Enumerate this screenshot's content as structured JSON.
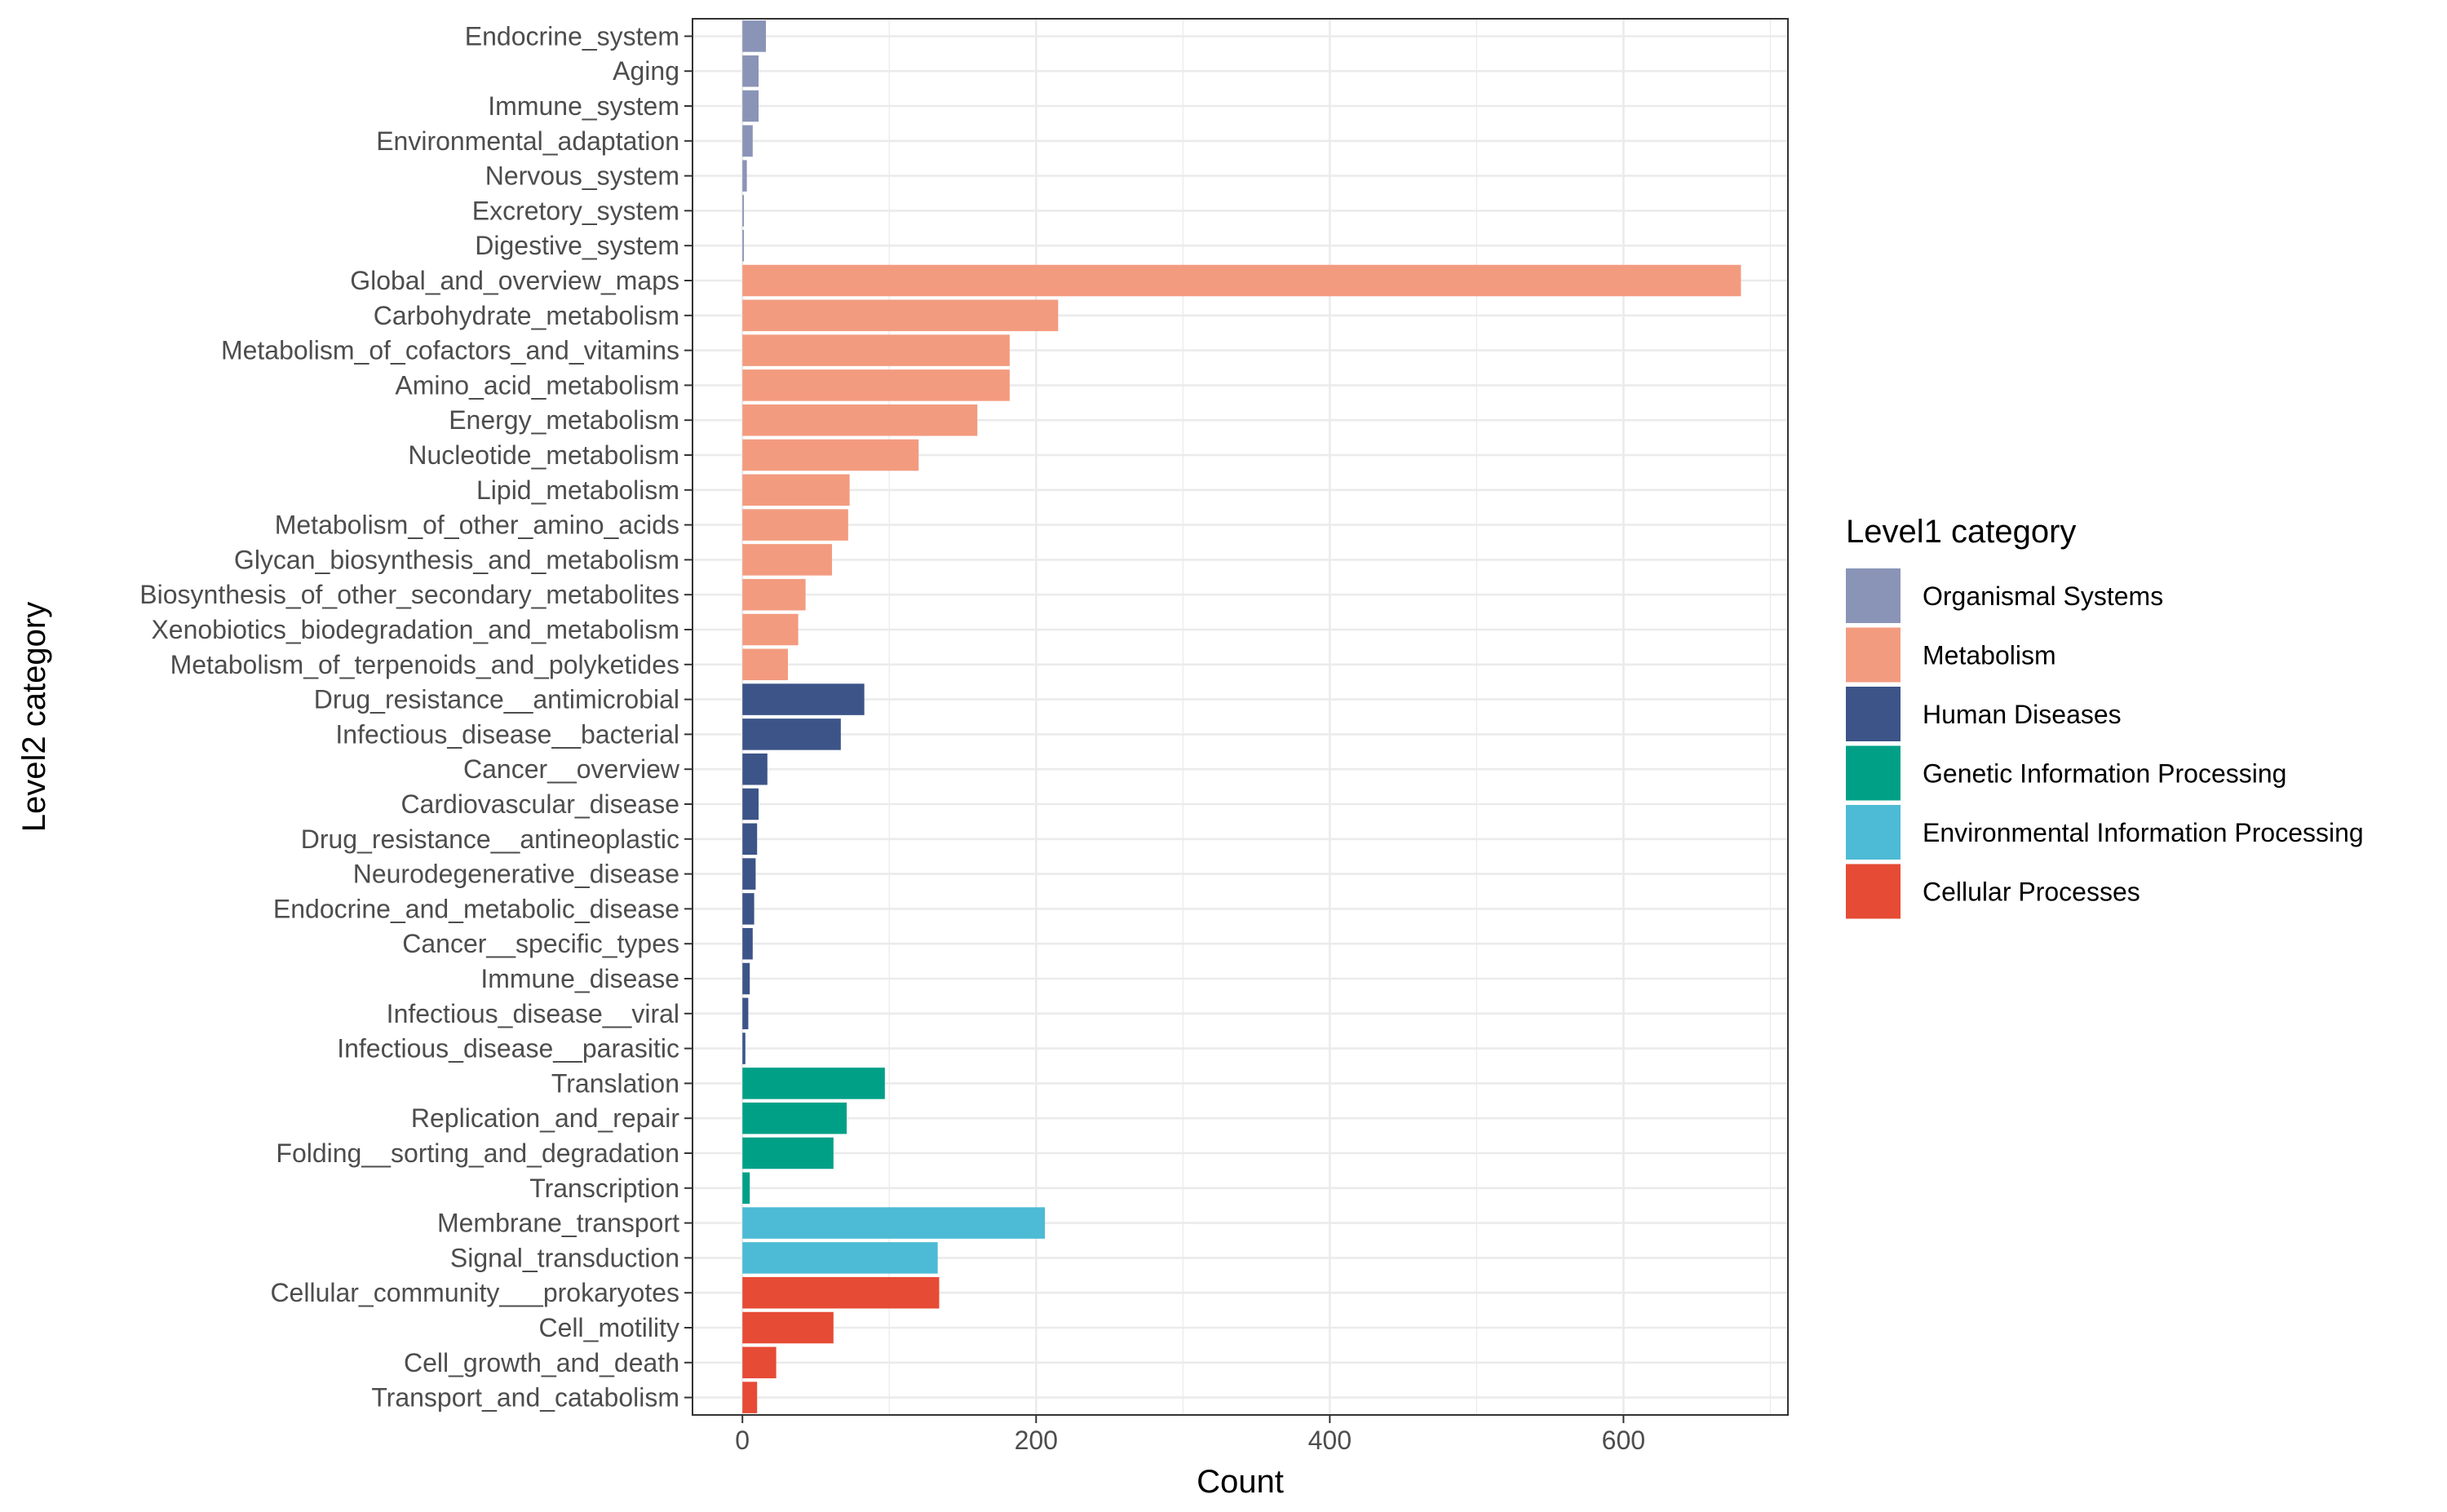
{
  "chart_data": {
    "type": "bar",
    "orientation": "horizontal",
    "xlabel": "Count",
    "ylabel": "Level2 category",
    "xlim": [
      -34,
      712
    ],
    "xticks": [
      0,
      200,
      400,
      600
    ],
    "grid": true,
    "legend_position": "right",
    "legend_title": "Level1 category",
    "groups": [
      {
        "name": "Organismal Systems",
        "color": "#8a94b7"
      },
      {
        "name": "Metabolism",
        "color": "#f39b7f"
      },
      {
        "name": "Human Diseases",
        "color": "#3c5488"
      },
      {
        "name": "Genetic Information Processing",
        "color": "#00a087"
      },
      {
        "name": "Environmental Information Processing",
        "color": "#4dbbd5"
      },
      {
        "name": "Cellular Processes",
        "color": "#e64b35"
      }
    ],
    "categories": [
      "Endocrine_system",
      "Aging",
      "Immune_system",
      "Environmental_adaptation",
      "Nervous_system",
      "Excretory_system",
      "Digestive_system",
      "Global_and_overview_maps",
      "Carbohydrate_metabolism",
      "Metabolism_of_cofactors_and_vitamins",
      "Amino_acid_metabolism",
      "Energy_metabolism",
      "Nucleotide_metabolism",
      "Lipid_metabolism",
      "Metabolism_of_other_amino_acids",
      "Glycan_biosynthesis_and_metabolism",
      "Biosynthesis_of_other_secondary_metabolites",
      "Xenobiotics_biodegradation_and_metabolism",
      "Metabolism_of_terpenoids_and_polyketides",
      "Drug_resistance__antimicrobial",
      "Infectious_disease__bacterial",
      "Cancer__overview",
      "Cardiovascular_disease",
      "Drug_resistance__antineoplastic",
      "Neurodegenerative_disease",
      "Endocrine_and_metabolic_disease",
      "Cancer__specific_types",
      "Immune_disease",
      "Infectious_disease__viral",
      "Infectious_disease__parasitic",
      "Translation",
      "Replication_and_repair",
      "Folding__sorting_and_degradation",
      "Transcription",
      "Membrane_transport",
      "Signal_transduction",
      "Cellular_community___prokaryotes",
      "Cell_motility",
      "Cell_growth_and_death",
      "Transport_and_catabolism"
    ],
    "values": [
      16,
      11,
      11,
      7,
      3,
      1,
      1,
      680,
      215,
      182,
      182,
      160,
      120,
      73,
      72,
      61,
      43,
      38,
      31,
      83,
      67,
      17,
      11,
      10,
      9,
      8,
      7,
      5,
      4,
      2,
      97,
      71,
      62,
      5,
      206,
      133,
      134,
      62,
      23,
      10
    ],
    "group_index": [
      0,
      0,
      0,
      0,
      0,
      0,
      0,
      1,
      1,
      1,
      1,
      1,
      1,
      1,
      1,
      1,
      1,
      1,
      1,
      2,
      2,
      2,
      2,
      2,
      2,
      2,
      2,
      2,
      2,
      2,
      3,
      3,
      3,
      3,
      4,
      4,
      5,
      5,
      5,
      5
    ]
  }
}
